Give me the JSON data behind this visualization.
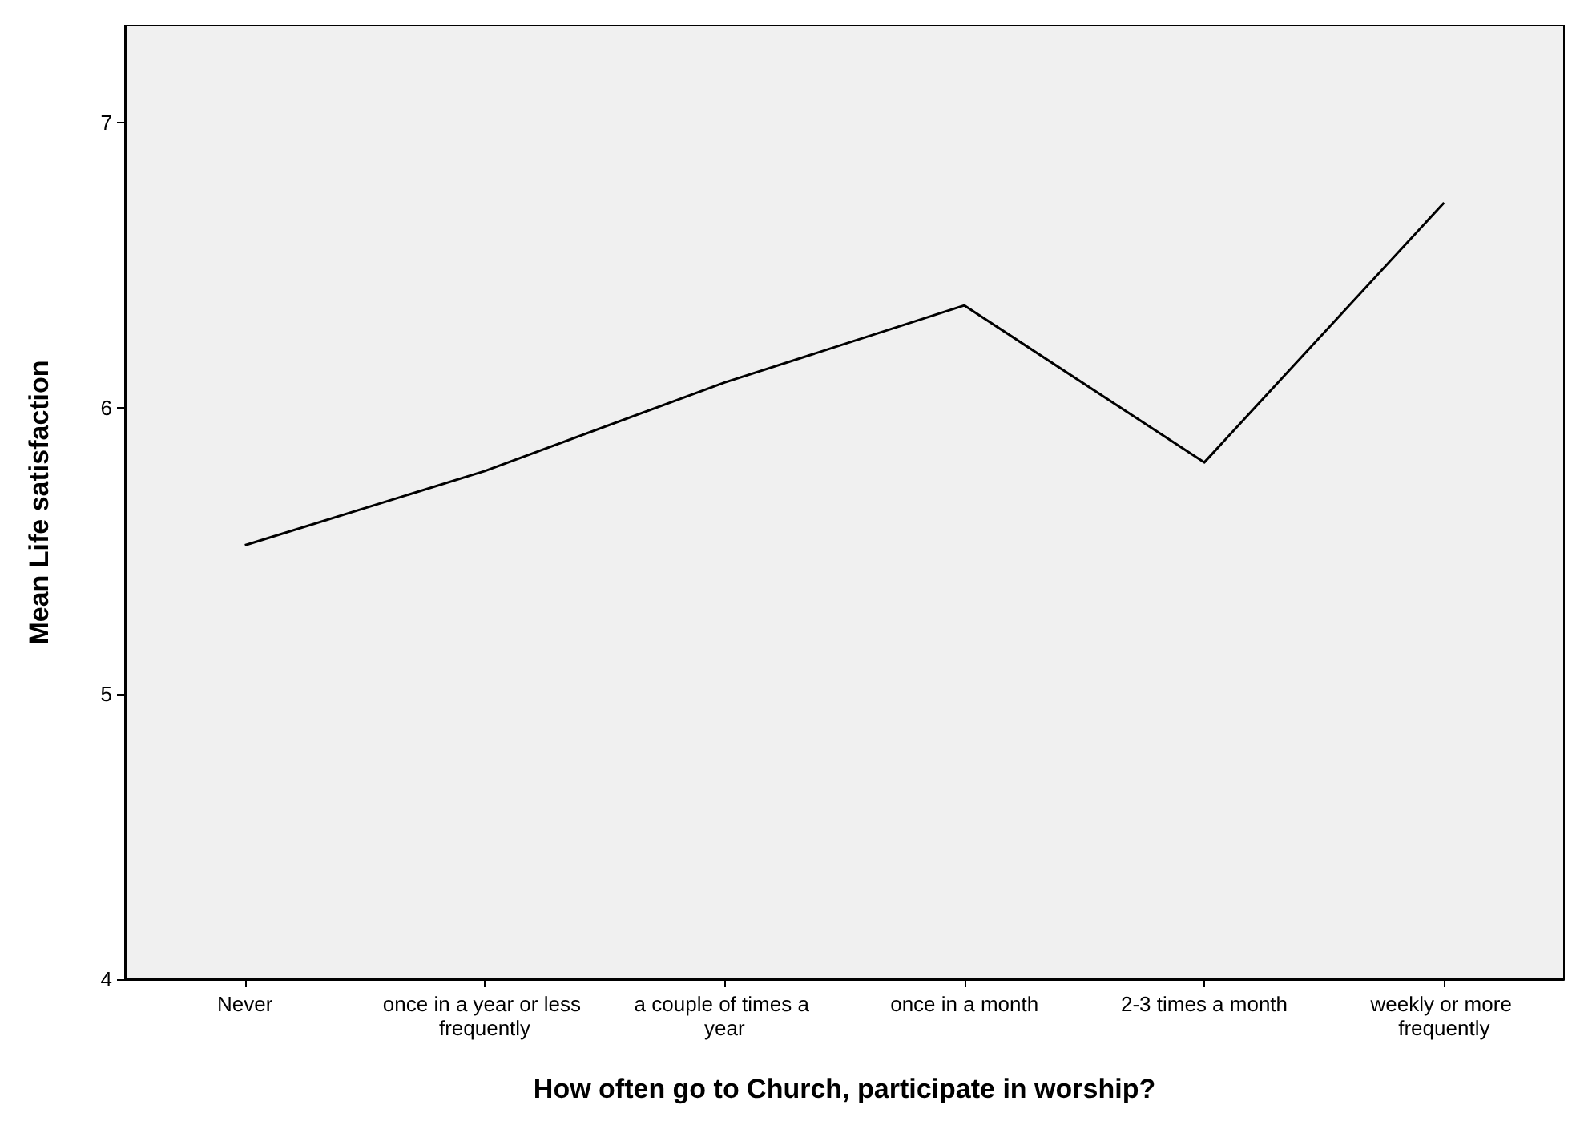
{
  "chart_data": {
    "type": "line",
    "xlabel": "How often go to Church, participate in worship?",
    "ylabel": "Mean Life satisfaction",
    "categories": [
      "Never",
      "once in a year or less frequently",
      "a couple of times a year",
      "once in a month",
      "2-3 times a month",
      "weekly or more frequently"
    ],
    "series": [
      {
        "color": "#000000",
        "values": [
          5.52,
          5.78,
          6.09,
          6.36,
          5.81,
          6.72
        ]
      }
    ],
    "ylim": [
      4,
      7.34
    ],
    "yticks": [
      4,
      5,
      6,
      7
    ],
    "grid": false,
    "marker": "none",
    "line_style": "solid"
  }
}
